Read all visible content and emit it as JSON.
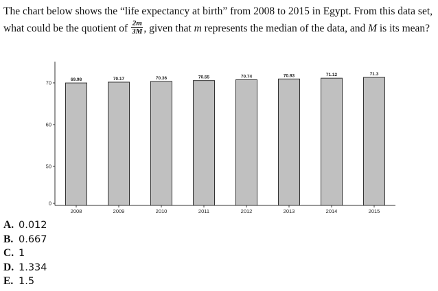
{
  "question": {
    "part1": "The chart below shows the “life expectancy at birth” from 2008 to 2015 in Egypt. From this data set, what could be the quotient of",
    "frac_num": "2m",
    "frac_den": "3M",
    "part2": ", given that",
    "var_m": "m",
    "part3": "represents the median of the data, and",
    "var_M": "M",
    "part4": "is its mean?"
  },
  "chart_data": {
    "type": "bar",
    "categories": [
      "2008",
      "2009",
      "2010",
      "2011",
      "2012",
      "2013",
      "2014",
      "2015"
    ],
    "values": [
      69.98,
      70.17,
      70.36,
      70.55,
      70.74,
      70.93,
      71.12,
      71.3
    ],
    "value_labels": [
      "69.98",
      "70.17",
      "70.36",
      "70.55",
      "70.74",
      "70.93",
      "71.12",
      "71.3"
    ],
    "title": "",
    "xlabel": "",
    "ylabel": "",
    "yticks": [
      "0",
      "50",
      "60",
      "70"
    ],
    "axis_break": true,
    "bar_color": "#c0c0c0",
    "bar_stroke": "#333333",
    "grid": false
  },
  "options": [
    {
      "letter": "A.",
      "value": "0.012"
    },
    {
      "letter": "B.",
      "value": "0.667"
    },
    {
      "letter": "C.",
      "value": "1"
    },
    {
      "letter": "D.",
      "value": "1.334"
    },
    {
      "letter": "E.",
      "value": "1.5"
    }
  ]
}
